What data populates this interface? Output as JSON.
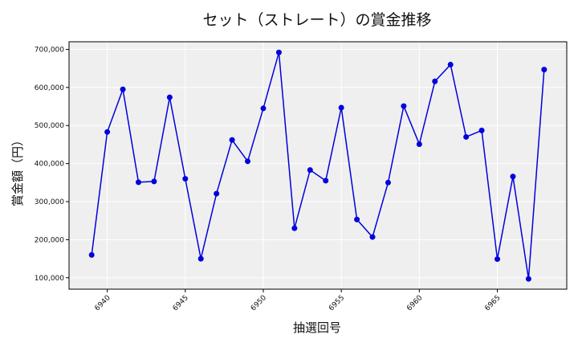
{
  "chart_data": {
    "type": "line",
    "title": "セット（ストレート）の賞金推移",
    "xlabel": "抽選回号",
    "ylabel": "賞金額（円）",
    "x": [
      6939,
      6940,
      6941,
      6942,
      6943,
      6944,
      6945,
      6946,
      6947,
      6948,
      6949,
      6950,
      6951,
      6952,
      6953,
      6954,
      6955,
      6956,
      6957,
      6958,
      6959,
      6960,
      6961,
      6962,
      6963,
      6964,
      6965,
      6966,
      6967,
      6968
    ],
    "series": [
      {
        "values": [
          160000,
          483000,
          595000,
          351000,
          353000,
          574000,
          360000,
          150000,
          321000,
          462000,
          406000,
          545000,
          692000,
          230000,
          383000,
          355000,
          547000,
          253000,
          207000,
          350000,
          551000,
          451000,
          616000,
          660000,
          470000,
          487000,
          149000,
          366000,
          97000,
          647000
        ],
        "color": "#0000dd"
      }
    ],
    "xticks": [
      6940,
      6945,
      6950,
      6955,
      6960,
      6965
    ],
    "yticks": [
      100000,
      200000,
      300000,
      400000,
      500000,
      600000,
      700000
    ],
    "ytick_labels": [
      "100,000",
      "200,000",
      "300,000",
      "400,000",
      "500,000",
      "600,000",
      "700,000"
    ],
    "xlim": [
      6937.55,
      6969.45
    ],
    "ylim": [
      70000,
      720000
    ],
    "grid": true,
    "background": "#efefef"
  }
}
